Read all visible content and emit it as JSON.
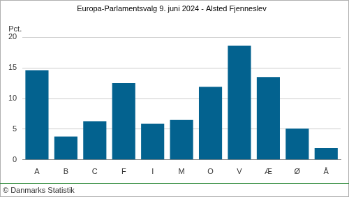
{
  "chart_data": {
    "type": "bar",
    "title": "Europa-Parlamentsvalg 9. juni 2024 - Alsted Fjenneslev",
    "y_label": "Pct.",
    "annotation": "© Danmarks Statistik",
    "categories": [
      "A",
      "B",
      "C",
      "F",
      "I",
      "M",
      "O",
      "V",
      "Æ",
      "Ø",
      "Å"
    ],
    "values": [
      14.6,
      3.8,
      6.3,
      12.5,
      5.9,
      6.5,
      11.9,
      18.6,
      13.5,
      5.1,
      1.9
    ],
    "color": "#03628f",
    "ylim": [
      0,
      20
    ],
    "yticks": [
      0,
      5,
      10,
      15,
      20
    ],
    "grid": true
  }
}
